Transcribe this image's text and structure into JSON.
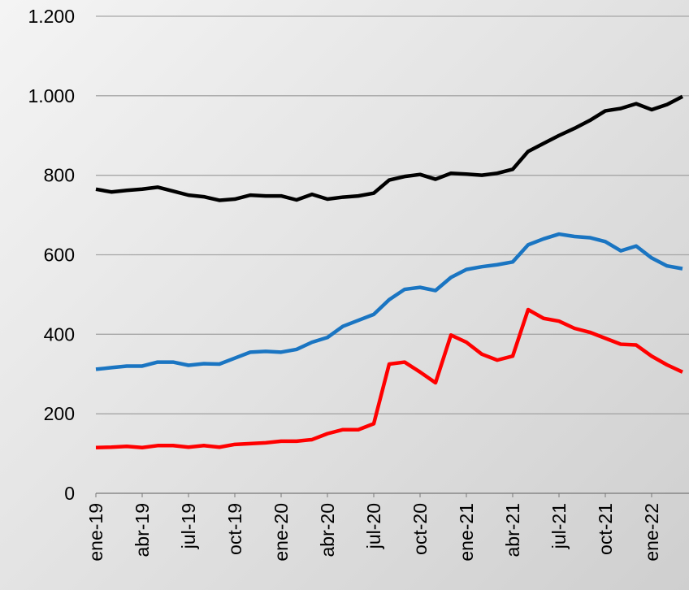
{
  "chart_data": {
    "type": "line",
    "categories": [
      "ene-19",
      null,
      null,
      "abr-19",
      null,
      null,
      "jul-19",
      null,
      null,
      "oct-19",
      null,
      null,
      "ene-20",
      null,
      null,
      "abr-20",
      null,
      null,
      "jul-20",
      null,
      null,
      "oct-20",
      null,
      null,
      "ene-21",
      null,
      null,
      "abr-21",
      null,
      null,
      "jul-21",
      null,
      null,
      "oct-21",
      null,
      null,
      "ene-22",
      null,
      null
    ],
    "series": [
      {
        "color": "#000000",
        "values": [
          765,
          758,
          762,
          765,
          770,
          760,
          750,
          746,
          737,
          740,
          750,
          748,
          748,
          738,
          752,
          740,
          745,
          748,
          755,
          788,
          797,
          802,
          790,
          805,
          803,
          800,
          805,
          815,
          860,
          880,
          900,
          918,
          938,
          962,
          968,
          980,
          965,
          978,
          998
        ]
      },
      {
        "color": "#1a75c2",
        "values": [
          312,
          316,
          320,
          320,
          330,
          330,
          322,
          326,
          325,
          340,
          355,
          357,
          355,
          362,
          380,
          392,
          420,
          435,
          450,
          487,
          513,
          518,
          510,
          543,
          563,
          570,
          575,
          582,
          625,
          640,
          652,
          646,
          643,
          633,
          610,
          622,
          592,
          572,
          565
        ]
      },
      {
        "color": "#ff0000",
        "values": [
          115,
          116,
          118,
          115,
          120,
          120,
          116,
          120,
          116,
          123,
          125,
          127,
          131,
          131,
          135,
          150,
          160,
          160,
          175,
          325,
          330,
          305,
          278,
          398,
          380,
          350,
          335,
          345,
          462,
          440,
          433,
          415,
          405,
          390,
          375,
          373,
          345,
          323,
          305
        ]
      }
    ],
    "ylim": [
      0,
      1200
    ],
    "yticks": [
      0,
      200,
      400,
      600,
      800,
      {
        "value": 1000,
        "label": "1.000"
      },
      {
        "value": 1200,
        "label": "1.200"
      }
    ],
    "grid": true
  }
}
